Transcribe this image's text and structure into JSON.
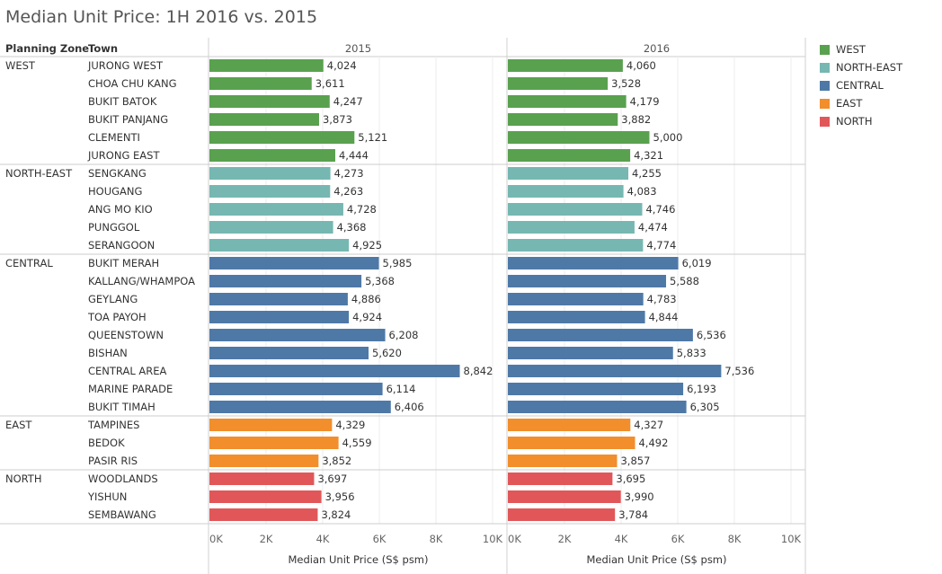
{
  "title": "Median Unit Price: 1H 2016 vs. 2015",
  "headers": {
    "zone": "Planning Zone",
    "town": "Town"
  },
  "colors": {
    "WEST": "#59a14f",
    "NORTH-EAST": "#76b7b2",
    "CENTRAL": "#4e79a7",
    "EAST": "#f28e2b",
    "NORTH": "#e15759"
  },
  "legend": [
    "WEST",
    "NORTH-EAST",
    "CENTRAL",
    "EAST",
    "NORTH"
  ],
  "chart_data": {
    "type": "bar",
    "orientation": "horizontal",
    "title": "Median Unit Price: 1H 2016 vs. 2015",
    "xlabel": "Median Unit Price (S$ psm)",
    "xlim": [
      0,
      10000
    ],
    "x_ticks": [
      "0K",
      "2K",
      "4K",
      "6K",
      "8K",
      "10K"
    ],
    "panels": [
      "2015",
      "2016"
    ],
    "groups": [
      {
        "zone": "WEST",
        "towns": [
          {
            "town": "JURONG WEST",
            "v2015": 4024,
            "v2016": 4060
          },
          {
            "town": "CHOA CHU KANG",
            "v2015": 3611,
            "v2016": 3528
          },
          {
            "town": "BUKIT BATOK",
            "v2015": 4247,
            "v2016": 4179
          },
          {
            "town": "BUKIT PANJANG",
            "v2015": 3873,
            "v2016": 3882
          },
          {
            "town": "CLEMENTI",
            "v2015": 5121,
            "v2016": 5000
          },
          {
            "town": "JURONG EAST",
            "v2015": 4444,
            "v2016": 4321
          }
        ]
      },
      {
        "zone": "NORTH-EAST",
        "towns": [
          {
            "town": "SENGKANG",
            "v2015": 4273,
            "v2016": 4255
          },
          {
            "town": "HOUGANG",
            "v2015": 4263,
            "v2016": 4083
          },
          {
            "town": "ANG MO KIO",
            "v2015": 4728,
            "v2016": 4746
          },
          {
            "town": "PUNGGOL",
            "v2015": 4368,
            "v2016": 4474
          },
          {
            "town": "SERANGOON",
            "v2015": 4925,
            "v2016": 4774
          }
        ]
      },
      {
        "zone": "CENTRAL",
        "towns": [
          {
            "town": "BUKIT MERAH",
            "v2015": 5985,
            "v2016": 6019
          },
          {
            "town": "KALLANG/WHAMPOA",
            "v2015": 5368,
            "v2016": 5588
          },
          {
            "town": "GEYLANG",
            "v2015": 4886,
            "v2016": 4783
          },
          {
            "town": "TOA PAYOH",
            "v2015": 4924,
            "v2016": 4844
          },
          {
            "town": "QUEENSTOWN",
            "v2015": 6208,
            "v2016": 6536
          },
          {
            "town": "BISHAN",
            "v2015": 5620,
            "v2016": 5833
          },
          {
            "town": "CENTRAL AREA",
            "v2015": 8842,
            "v2016": 7536
          },
          {
            "town": "MARINE PARADE",
            "v2015": 6114,
            "v2016": 6193
          },
          {
            "town": "BUKIT TIMAH",
            "v2015": 6406,
            "v2016": 6305
          }
        ]
      },
      {
        "zone": "EAST",
        "towns": [
          {
            "town": "TAMPINES",
            "v2015": 4329,
            "v2016": 4327
          },
          {
            "town": "BEDOK",
            "v2015": 4559,
            "v2016": 4492
          },
          {
            "town": "PASIR RIS",
            "v2015": 3852,
            "v2016": 3857
          }
        ]
      },
      {
        "zone": "NORTH",
        "towns": [
          {
            "town": "WOODLANDS",
            "v2015": 3697,
            "v2016": 3695
          },
          {
            "town": "YISHUN",
            "v2015": 3956,
            "v2016": 3990
          },
          {
            "town": "SEMBAWANG",
            "v2015": 3824,
            "v2016": 3784
          }
        ]
      }
    ]
  }
}
